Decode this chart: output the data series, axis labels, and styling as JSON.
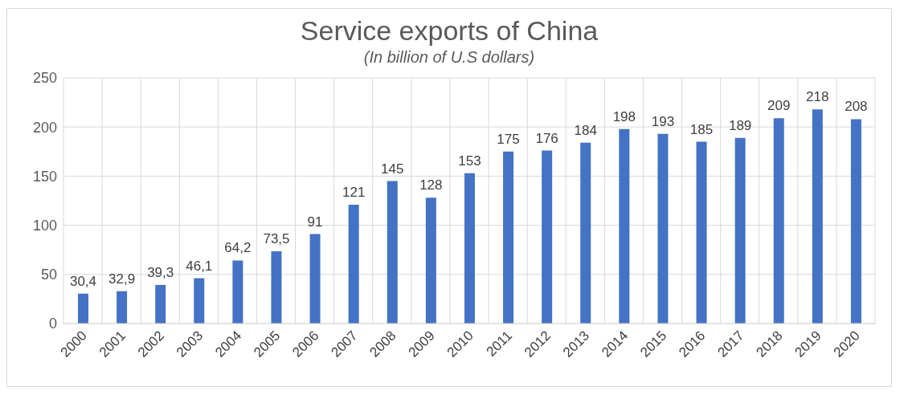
{
  "chart_data": {
    "type": "bar",
    "title": "Service exports of China",
    "subtitle": "(In billion of U.S dollars)",
    "categories": [
      "2000",
      "2001",
      "2002",
      "2003",
      "2004",
      "2005",
      "2006",
      "2007",
      "2008",
      "2009",
      "2010",
      "2011",
      "2012",
      "2013",
      "2014",
      "2015",
      "2016",
      "2017",
      "2018",
      "2019",
      "2020"
    ],
    "values": [
      30.4,
      32.9,
      39.3,
      46.1,
      64.2,
      73.5,
      91,
      121,
      145,
      128,
      153,
      175,
      176,
      184,
      198,
      193,
      185,
      189,
      209,
      218,
      208
    ],
    "value_labels": [
      "30,4",
      "32,9",
      "39,3",
      "46,1",
      "64,2",
      "73,5",
      "91",
      "121",
      "145",
      "128",
      "153",
      "175",
      "176",
      "184",
      "198",
      "193",
      "185",
      "189",
      "209",
      "218",
      "208"
    ],
    "color": "#4472c4",
    "ylim": [
      0,
      250
    ],
    "yticks": [
      0,
      50,
      100,
      150,
      200,
      250
    ],
    "grid": true
  }
}
